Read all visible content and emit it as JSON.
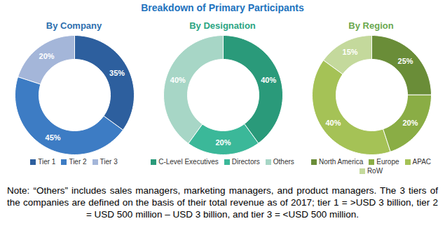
{
  "title": "Breakdown of Primary Participants",
  "caption": "Note: “Others” includes sales managers, marketing managers, and product managers. The 3 tiers of the companies are defined on the basis of their total revenue as of 2017; tier 1 = >USD 3 billion, tier 2 = USD 500 million – USD 3 billion, and tier 3 = <USD 500 million.",
  "chart_data": [
    {
      "type": "pie",
      "title": "By Company",
      "categories": [
        "Tier 1",
        "Tier 2",
        "Tier 3"
      ],
      "values": [
        35,
        45,
        20
      ],
      "value_labels": [
        "35%",
        "45%",
        "20%"
      ],
      "colors": [
        "#2d5f9e",
        "#3d7cc4",
        "#a4b6d9"
      ],
      "data_labels": true,
      "legend": "bottom",
      "color": "#2d6fae"
    },
    {
      "type": "pie",
      "title": "By Designation",
      "categories": [
        "C-Level Executives",
        "Directors",
        "Others"
      ],
      "values": [
        40,
        20,
        40
      ],
      "value_labels": [
        "40%",
        "20%",
        "40%"
      ],
      "colors": [
        "#2a9a7a",
        "#3bb899",
        "#a7d6c6"
      ],
      "data_labels": true,
      "legend": "bottom",
      "color": "#2aa583"
    },
    {
      "type": "pie",
      "title": "By Region",
      "categories": [
        "North America",
        "Europe",
        "APAC",
        "RoW"
      ],
      "values": [
        25,
        20,
        40,
        15
      ],
      "value_labels": [
        "25%",
        "20%",
        "40%",
        "15%"
      ],
      "colors": [
        "#6a8d38",
        "#8aad45",
        "#a5c256",
        "#c4d99c"
      ],
      "data_labels": true,
      "legend": "bottom",
      "color": "#6aa84f"
    }
  ]
}
